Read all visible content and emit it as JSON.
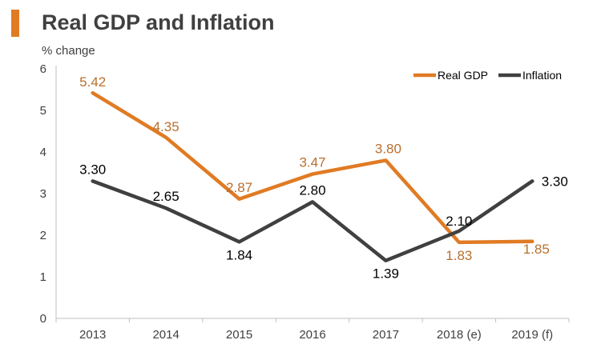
{
  "chart_data": {
    "type": "line",
    "title": "Real GDP and Inflation",
    "ylabel": "% change",
    "xlabel": "",
    "categories": [
      "2013",
      "2014",
      "2015",
      "2016",
      "2017",
      "2018 (e)",
      "2019 (f)"
    ],
    "ylim": [
      0,
      6
    ],
    "yticks": [
      "0",
      "1",
      "2",
      "3",
      "4",
      "5",
      "6"
    ],
    "grid": false,
    "legend_position": "top-right",
    "series": [
      {
        "name": "Real GDP",
        "color": "#E07B24",
        "values": [
          5.42,
          4.35,
          2.87,
          3.47,
          3.8,
          1.83,
          1.85
        ],
        "labels": [
          "5.42",
          "4.35",
          "2.87",
          "3.47",
          "3.80",
          "1.83",
          "1.85"
        ]
      },
      {
        "name": "Inflation",
        "color": "#404040",
        "values": [
          3.3,
          2.65,
          1.84,
          2.8,
          1.39,
          2.1,
          3.3
        ],
        "labels": [
          "3.30",
          "2.65",
          "1.84",
          "2.80",
          "1.39",
          "2.10",
          "3.30"
        ]
      }
    ]
  }
}
